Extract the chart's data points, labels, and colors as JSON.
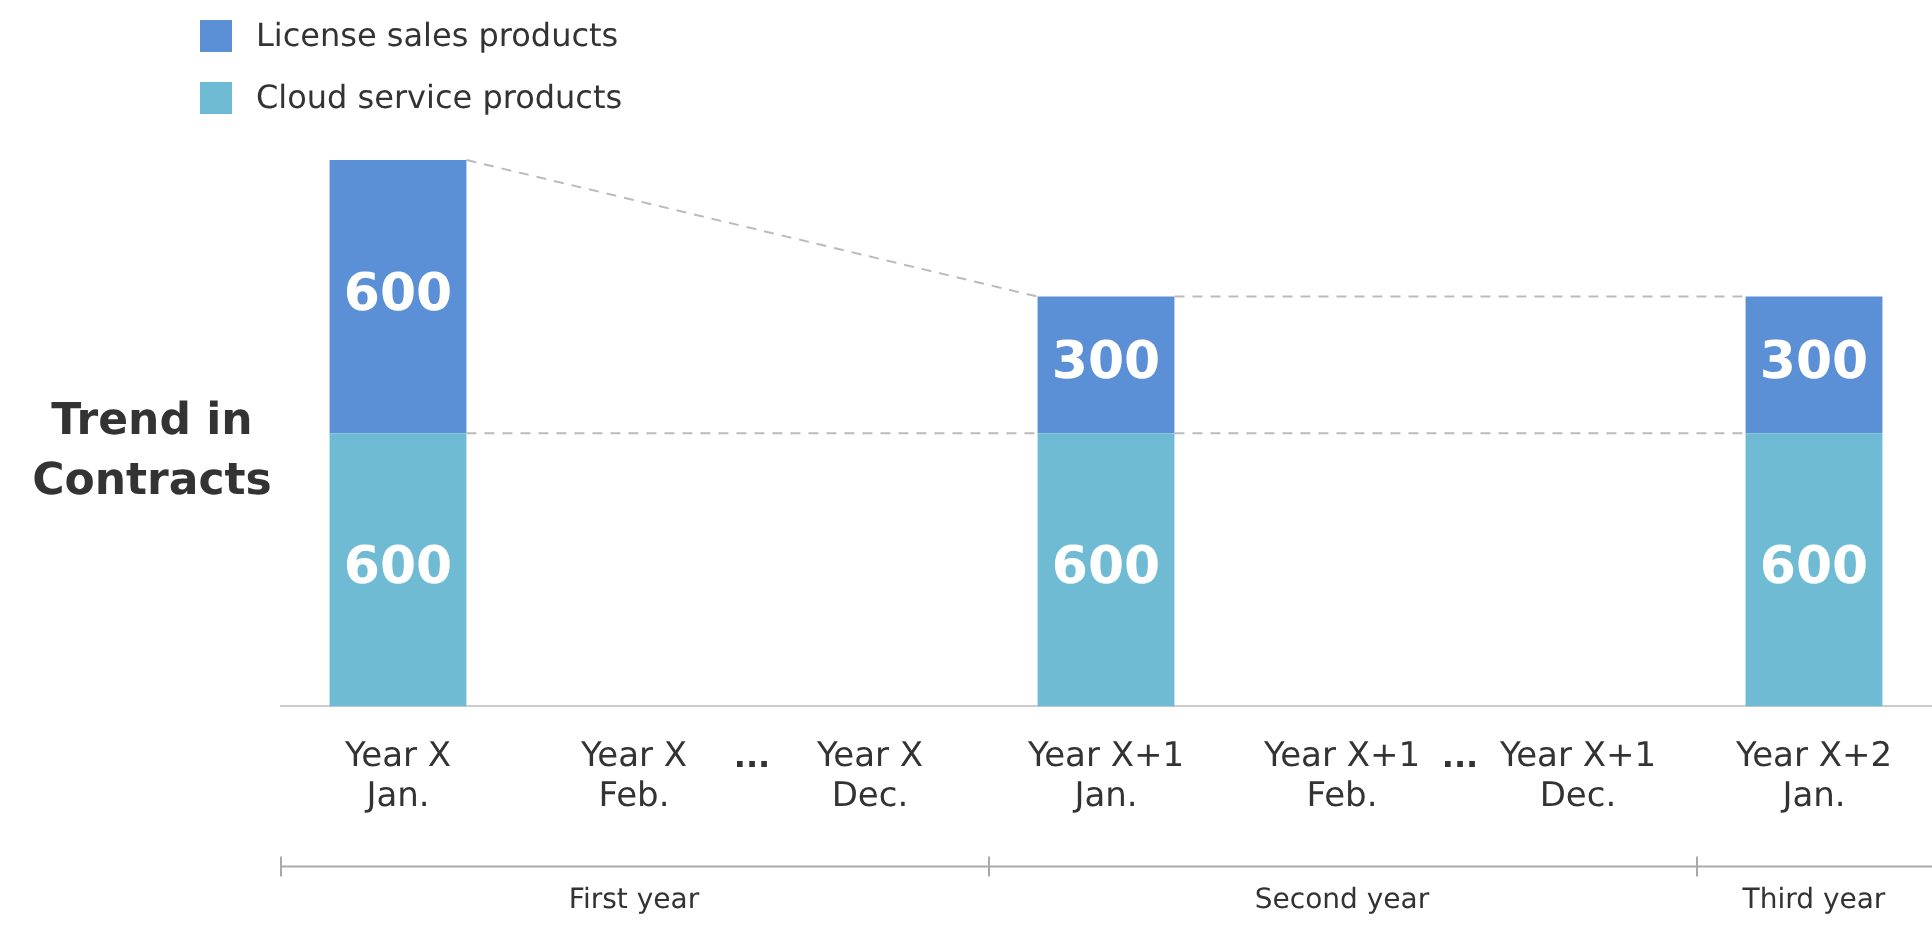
{
  "chart_data": {
    "type": "bar",
    "stacked": true,
    "ylabel": "Trend in Contracts",
    "categories": [
      "Year X Jan.",
      "Year X Feb.",
      "Year X Dec.",
      "Year X+1 Jan.",
      "Year X+1 Feb.",
      "Year X+1 Dec.",
      "Year X+2 Jan."
    ],
    "series": [
      {
        "name": "Cloud service products",
        "color": "#6fbbd3",
        "values": [
          600,
          null,
          null,
          600,
          null,
          null,
          600
        ]
      },
      {
        "name": "License sales products",
        "color": "#5b8fd6",
        "values": [
          600,
          null,
          null,
          300,
          null,
          null,
          300
        ]
      }
    ],
    "data_labels": true,
    "legend": "top left",
    "tick_labels": "x",
    "grid": false,
    "annotations": [
      "...",
      "...",
      "First year",
      "Second year",
      "Third year"
    ]
  }
}
